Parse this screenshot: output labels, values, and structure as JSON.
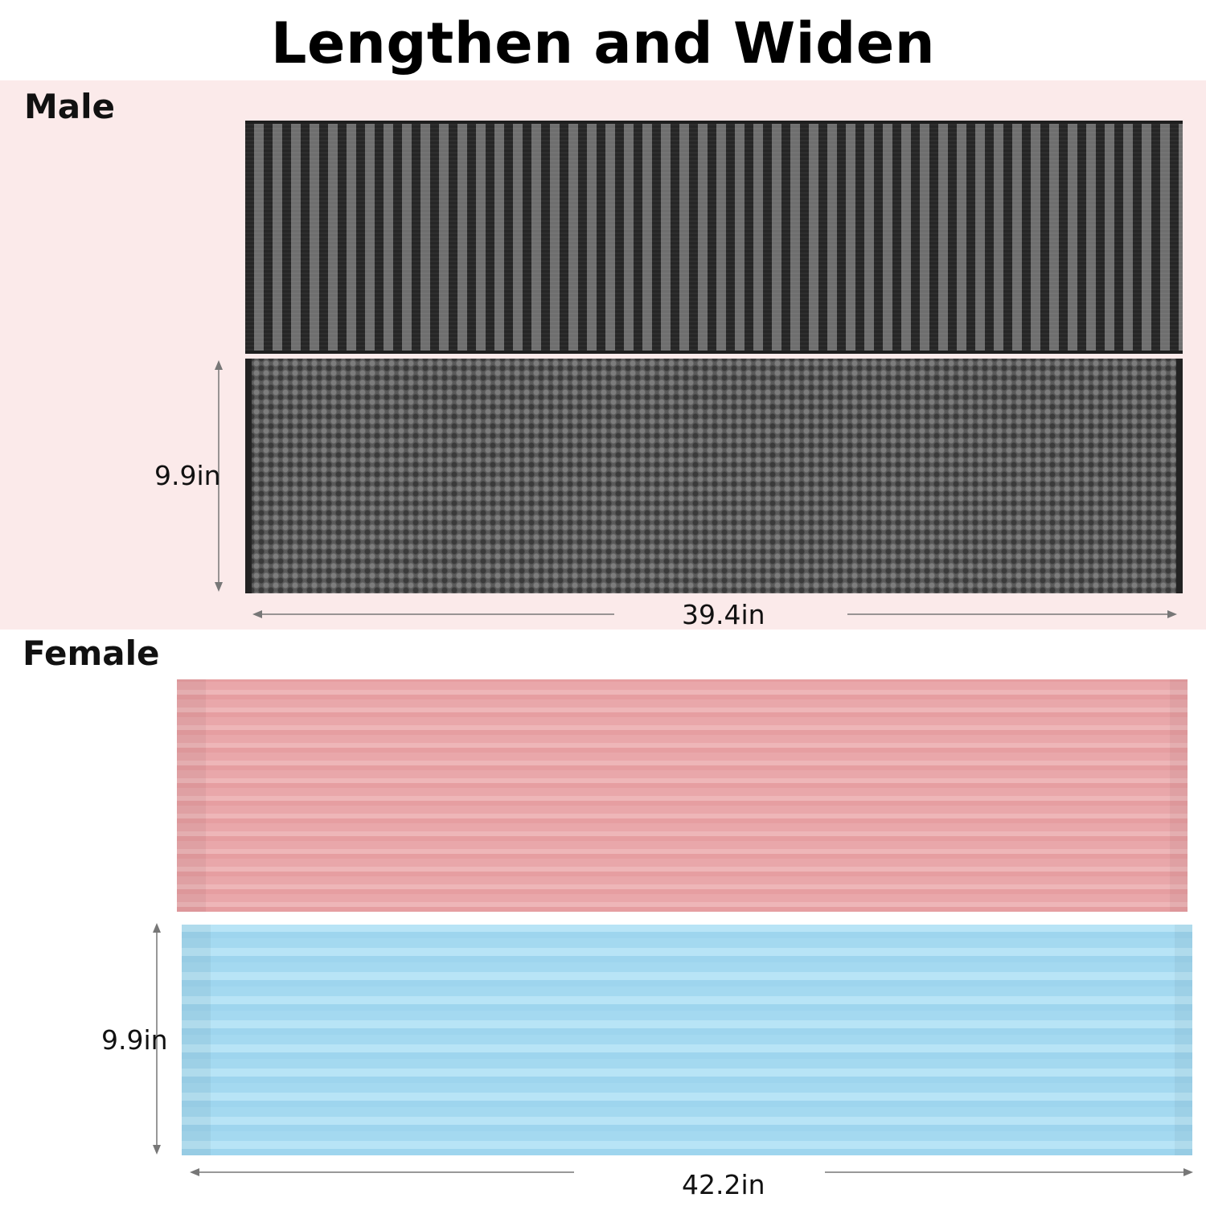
{
  "title": "Lengthen and Widen",
  "male": {
    "label": "Male",
    "width_label": "9.9in",
    "length_label": "39.4in"
  },
  "female": {
    "label": "Female",
    "width_label": "9.9in",
    "length_label": "42.2in"
  },
  "colors": {
    "male_background": "#fbeaea",
    "dark_towel": "#3a3a3a",
    "pink_towel": "#eaa9ab",
    "blue_towel": "#a8dcf2",
    "arrow": "#777777"
  }
}
